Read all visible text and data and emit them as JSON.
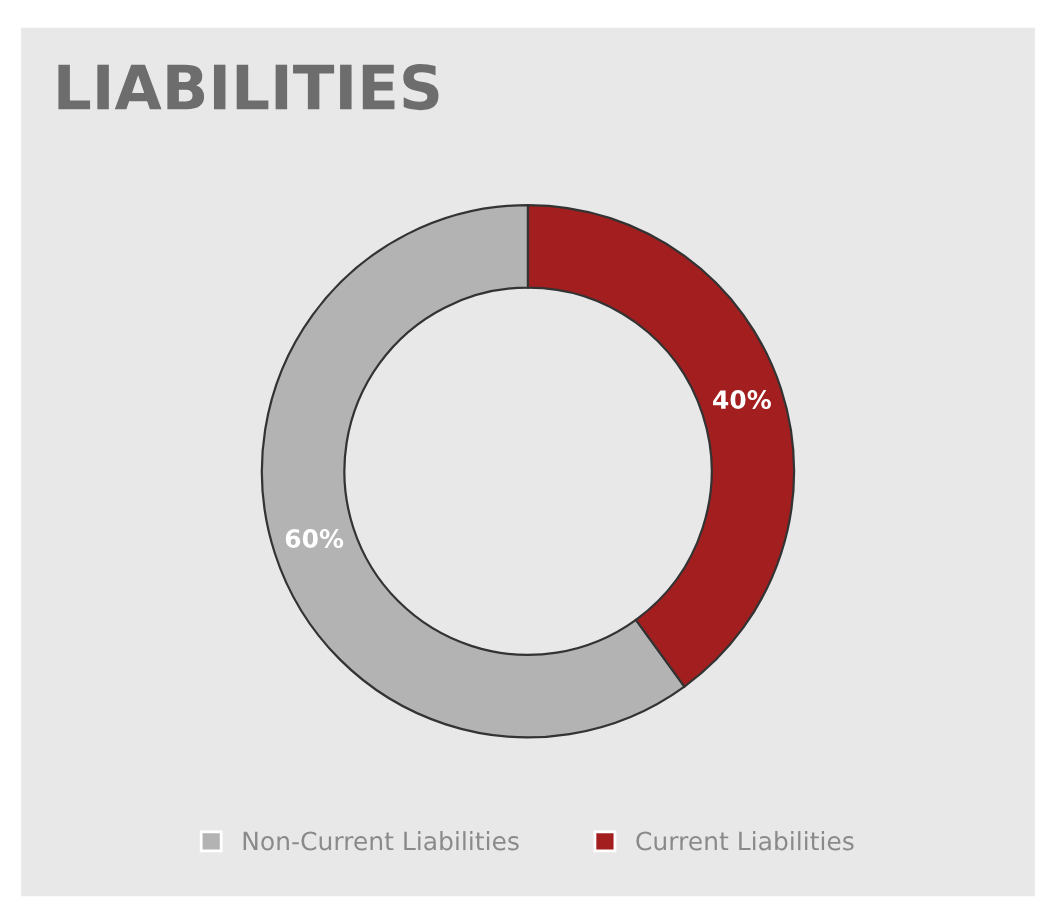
{
  "chart_data": {
    "type": "donut",
    "title": "LIABILITIES",
    "categories": [
      "Non-Current Liabilities",
      "Current Liabilities"
    ],
    "values": [
      60,
      40
    ],
    "colors": [
      "#b3b3b3",
      "#a31f1f"
    ],
    "value_labels": [
      "60%",
      "40%"
    ],
    "legend": "bottom"
  }
}
